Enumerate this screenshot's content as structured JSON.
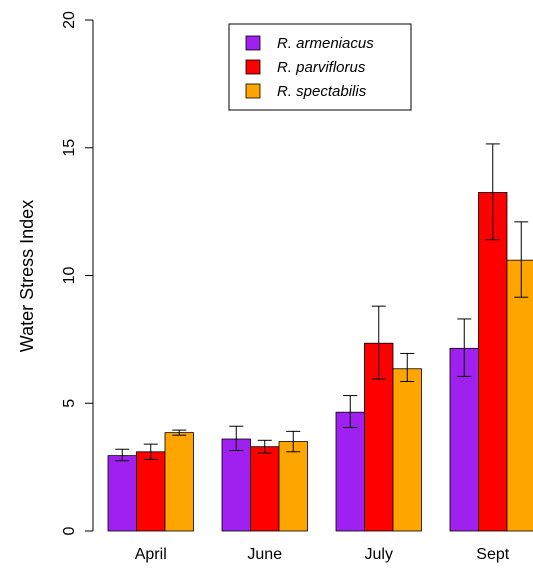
{
  "chart_data": {
    "type": "bar",
    "ylabel": "Water Stress Index",
    "xlabel": "",
    "ylim": [
      0,
      20
    ],
    "yticks": [
      "0",
      "5",
      "10",
      "15",
      "20"
    ],
    "categories": [
      "April",
      "June",
      "July",
      "Sept"
    ],
    "series": [
      {
        "name": "R. armeniacus",
        "color": "#a020f0",
        "values": [
          2.95,
          3.6,
          4.65,
          7.15
        ],
        "err_low": [
          2.75,
          3.15,
          4.05,
          6.05
        ],
        "err_high": [
          3.2,
          4.1,
          5.3,
          8.3
        ]
      },
      {
        "name": "R. parviflorus",
        "color": "#ff0000",
        "values": [
          3.1,
          3.3,
          7.35,
          13.25
        ],
        "err_low": [
          2.8,
          3.05,
          5.95,
          11.4
        ],
        "err_high": [
          3.4,
          3.55,
          8.8,
          15.15
        ]
      },
      {
        "name": "R. spectabilis",
        "color": "#ffa500",
        "values": [
          3.85,
          3.5,
          6.35,
          10.6
        ],
        "err_low": [
          3.75,
          3.1,
          5.85,
          9.15
        ],
        "err_high": [
          3.95,
          3.9,
          6.95,
          12.1
        ]
      }
    ],
    "legend": "top-center",
    "grid": false
  }
}
